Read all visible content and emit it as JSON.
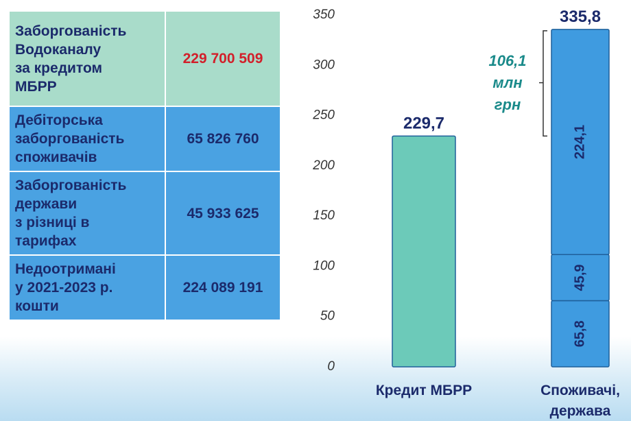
{
  "table": {
    "rows": [
      [
        "Заборгованість\nВодоканалу\nза кредитом\nМБРР",
        "229 700 509"
      ],
      [
        "Дебіторська\nзаборгованість\nспоживачів",
        "65 826 760"
      ],
      [
        "Заборгованість\nдержави\nз різниці в\nтарифах",
        "45 933 625"
      ],
      [
        "Недоотримані\nу 2021-2023 р.\nкошти",
        "224 089 191"
      ]
    ]
  },
  "chart_data": {
    "type": "stacked-bar",
    "categories": [
      "Кредит МБРР",
      "Споживачі,\nдержава"
    ],
    "series": [
      {
        "color": "#6ccab9",
        "values": [
          229.7,
          null
        ],
        "value_labels": [
          null,
          null
        ]
      },
      {
        "color": "#3f9be0",
        "values": [
          null,
          65.8
        ],
        "value_labels": [
          null,
          "65,8"
        ]
      },
      {
        "color": "#3f9be0",
        "values": [
          null,
          45.9
        ],
        "value_labels": [
          null,
          "45,9"
        ]
      },
      {
        "color": "#3f9be0",
        "values": [
          null,
          224.1
        ],
        "value_labels": [
          null,
          "224,1"
        ]
      }
    ],
    "totals": [
      229.7,
      335.8
    ],
    "total_labels": [
      "229,7",
      "335,8"
    ],
    "annotation": {
      "value": 106.1,
      "lines": [
        "106,1",
        "млн",
        "грн"
      ]
    },
    "ylim": [
      0,
      350
    ],
    "yticks": [
      0,
      50,
      100,
      150,
      200,
      250,
      300,
      350
    ],
    "grid": false
  }
}
